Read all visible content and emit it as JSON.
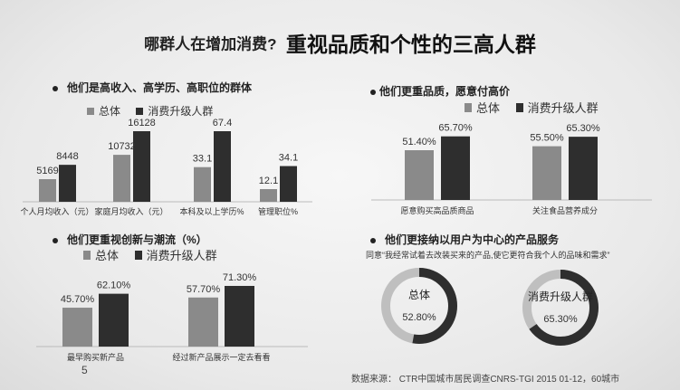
{
  "title": {
    "prefix": "哪群人在增加消费?",
    "main": "重视品质和个性的三高人群"
  },
  "legend": {
    "total": "总体",
    "upgrade": "消费升级人群"
  },
  "colors": {
    "total": "#8a8a8a",
    "upgrade": "#2e2e2e",
    "ring_track": "#bfbfbf"
  },
  "sections": {
    "s1": "他们是高收入、高学历、高职位的群体",
    "s2": "他们更重品质，愿意付高价",
    "s3": "他们更重视创新与潮流（%）",
    "s4": "他们更接纳以用户为中心的产品服务"
  },
  "chart_data": [
    {
      "type": "bar",
      "title": "他们是高收入、高学历、高职位的群体",
      "categories": [
        "个人月均收入（元）",
        "家庭月均收入（元）",
        "本科及以上学历%",
        "管理职位%"
      ],
      "series": [
        {
          "name": "总体",
          "values": [
            5169,
            10732,
            33.1,
            12.1
          ]
        },
        {
          "name": "消费升级人群",
          "values": [
            8448,
            16128,
            67.4,
            34.1
          ]
        }
      ]
    },
    {
      "type": "bar",
      "title": "他们更重品质，愿意付高价",
      "categories": [
        "愿意购买高品质商品",
        "关注食品营养成分"
      ],
      "series": [
        {
          "name": "总体",
          "values": [
            51.4,
            55.5
          ]
        },
        {
          "name": "消费升级人群",
          "values": [
            65.7,
            65.3
          ]
        }
      ],
      "value_labels": [
        [
          "51.40%",
          "55.50%"
        ],
        [
          "65.70%",
          "65.30%"
        ]
      ]
    },
    {
      "type": "bar",
      "title": "他们更重视创新与潮流（%）",
      "categories": [
        "最早购买新产品",
        "经过新产品展示一定去看看"
      ],
      "series": [
        {
          "name": "总体",
          "values": [
            45.7,
            57.7
          ]
        },
        {
          "name": "消费升级人群",
          "values": [
            62.1,
            71.3
          ]
        }
      ],
      "value_labels": [
        [
          "45.70%",
          "57.70%"
        ],
        [
          "62.10%",
          "71.30%"
        ]
      ]
    },
    {
      "type": "pie",
      "title": "他们更接纳以用户为中心的产品服务",
      "subtitle": "同意“我经常试着去改装买来的产品,使它更符合我个人的品味和需求”",
      "series": [
        {
          "name": "总体",
          "value": 52.8,
          "label": "52.80%"
        },
        {
          "name": "消费升级人群",
          "value": 65.3,
          "label": "65.30%"
        }
      ]
    }
  ],
  "source": "数据来源： CTR中国城市居民调查CNRS-TGI 2015 01-12，60城市",
  "page_number": "5"
}
